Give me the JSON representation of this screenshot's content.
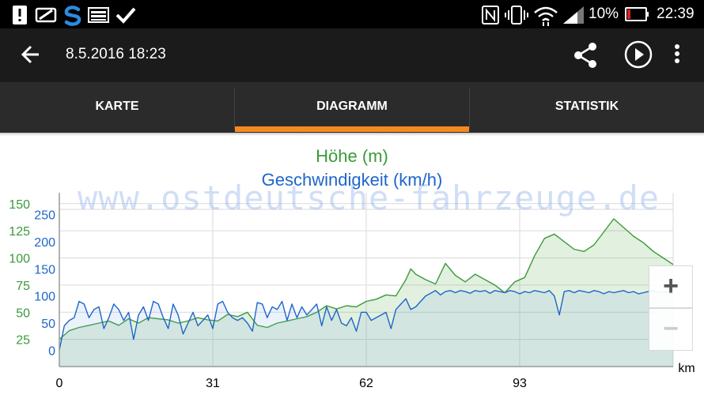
{
  "status_bar": {
    "battery_percent": "10%",
    "time": "22:39",
    "left_icons": [
      "alert-icon",
      "battery-saver-icon",
      "swype-icon",
      "image-icon",
      "check-icon"
    ],
    "right_icons": [
      "nfc-icon",
      "vibrate-icon",
      "wifi-icon",
      "signal-icon",
      "battery-low-icon"
    ]
  },
  "app_bar": {
    "title": "8.5.2016 18:23",
    "icons": [
      "back-arrow-icon",
      "share-icon",
      "play-icon",
      "more-vert-icon"
    ]
  },
  "tabs": [
    {
      "label": "KARTE",
      "selected": false
    },
    {
      "label": "DIAGRAMM",
      "selected": true
    },
    {
      "label": "STATISTIK",
      "selected": false
    }
  ],
  "accent_color": "#f58a1f",
  "watermark": "www.ostdeutsche-fahrzeuge.de",
  "zoom": {
    "in_label": "+",
    "out_label": "−"
  },
  "chart_data": {
    "type": "area",
    "title": "Höhe (m)",
    "subtitle": "Geschwindigkeit (km/h)",
    "xlabel": "km",
    "x_ticks": [
      "0",
      "31",
      "62",
      "93"
    ],
    "xlim": [
      0,
      124
    ],
    "left_axis": {
      "label": "Höhe (m)",
      "ticks": [
        "150",
        "125",
        "100",
        "75",
        "50",
        "25"
      ],
      "range": [
        0,
        160
      ],
      "color": "#3a9a3a"
    },
    "right_axis": {
      "label": "Geschwindigkeit (km/h)",
      "ticks": [
        "250",
        "200",
        "150",
        "100",
        "50",
        "0"
      ],
      "range": [
        -30,
        290
      ],
      "color": "#1e66c9"
    },
    "grid": true,
    "series": [
      {
        "name": "Höhe (m)",
        "color": "#3a9a3a",
        "fill": "rgba(95,170,80,0.18)",
        "x": [
          0,
          2,
          4,
          6,
          8,
          10,
          12,
          14,
          16,
          18,
          20,
          22,
          24,
          26,
          28,
          30,
          32,
          34,
          36,
          38,
          40,
          42,
          44,
          46,
          48,
          50,
          52,
          54,
          56,
          58,
          60,
          62,
          64,
          66,
          68,
          70,
          71,
          72,
          74,
          76,
          78,
          80,
          82,
          84,
          86,
          88,
          90,
          92,
          94,
          96,
          98,
          100,
          102,
          104,
          106,
          108,
          110,
          112,
          114,
          116,
          118,
          120,
          122,
          124
        ],
        "values": [
          25,
          33,
          36,
          38,
          40,
          42,
          38,
          44,
          40,
          45,
          44,
          43,
          40,
          42,
          45,
          43,
          42,
          48,
          46,
          50,
          38,
          36,
          40,
          42,
          44,
          46,
          50,
          56,
          53,
          56,
          55,
          60,
          62,
          66,
          65,
          80,
          90,
          85,
          80,
          76,
          95,
          84,
          78,
          85,
          80,
          75,
          68,
          78,
          82,
          102,
          118,
          122,
          115,
          108,
          106,
          112,
          124,
          136,
          128,
          120,
          114,
          106,
          100,
          94
        ]
      },
      {
        "name": "Geschwindigkeit (km/h)",
        "color": "#1e66c9",
        "fill": "rgba(120,170,235,0.15)",
        "x": [
          0,
          1,
          2,
          3,
          4,
          5,
          6,
          7,
          8,
          9,
          10,
          11,
          12,
          13,
          14,
          15,
          16,
          17,
          18,
          19,
          20,
          21,
          22,
          23,
          24,
          25,
          26,
          27,
          28,
          29,
          30,
          31,
          32,
          33,
          34,
          35,
          36,
          37,
          38,
          39,
          40,
          41,
          42,
          43,
          44,
          45,
          46,
          47,
          48,
          49,
          50,
          51,
          52,
          53,
          54,
          55,
          56,
          57,
          58,
          59,
          60,
          61,
          62,
          63,
          64,
          65,
          66,
          67,
          68,
          69,
          70,
          71,
          72,
          73,
          74,
          75,
          76,
          77,
          78,
          79,
          80,
          81,
          82,
          83,
          84,
          85,
          86,
          87,
          88,
          89,
          90,
          91,
          92,
          93,
          94,
          95,
          96,
          97,
          98,
          99,
          100,
          101,
          102,
          103,
          104,
          105,
          106,
          107,
          108,
          109,
          110,
          111,
          112,
          113,
          114,
          115,
          116,
          117,
          118,
          119,
          120,
          121,
          122,
          123,
          124
        ],
        "values": [
          0,
          45,
          55,
          60,
          90,
          85,
          60,
          75,
          80,
          40,
          60,
          85,
          75,
          55,
          70,
          20,
          65,
          80,
          55,
          90,
          85,
          60,
          40,
          85,
          65,
          30,
          50,
          70,
          45,
          55,
          65,
          40,
          85,
          90,
          70,
          60,
          55,
          60,
          50,
          35,
          88,
          85,
          60,
          80,
          75,
          90,
          55,
          85,
          60,
          80,
          65,
          75,
          85,
          45,
          80,
          55,
          75,
          50,
          45,
          60,
          35,
          70,
          70,
          55,
          60,
          65,
          70,
          40,
          75,
          85,
          95,
          75,
          80,
          90,
          100,
          105,
          110,
          102,
          108,
          110,
          106,
          110,
          108,
          105,
          110,
          108,
          110,
          105,
          110,
          108,
          106,
          110,
          108,
          104,
          108,
          106,
          110,
          108,
          106,
          110,
          100,
          65,
          108,
          110,
          106,
          110,
          108,
          106,
          110,
          108,
          104,
          108,
          106,
          108,
          110,
          106,
          108,
          104,
          106,
          108,
          110,
          106,
          108,
          106,
          104
        ]
      }
    ]
  }
}
